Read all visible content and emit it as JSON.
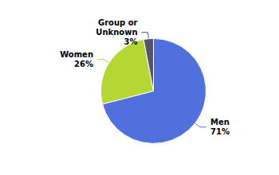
{
  "chart_data": {
    "type": "pie",
    "categories": [
      "Men",
      "Women",
      "Group or\nUnknown"
    ],
    "values": [
      71,
      26,
      3
    ],
    "value_labels": [
      "71%",
      "26%",
      "3%"
    ],
    "data_labels": true
  }
}
